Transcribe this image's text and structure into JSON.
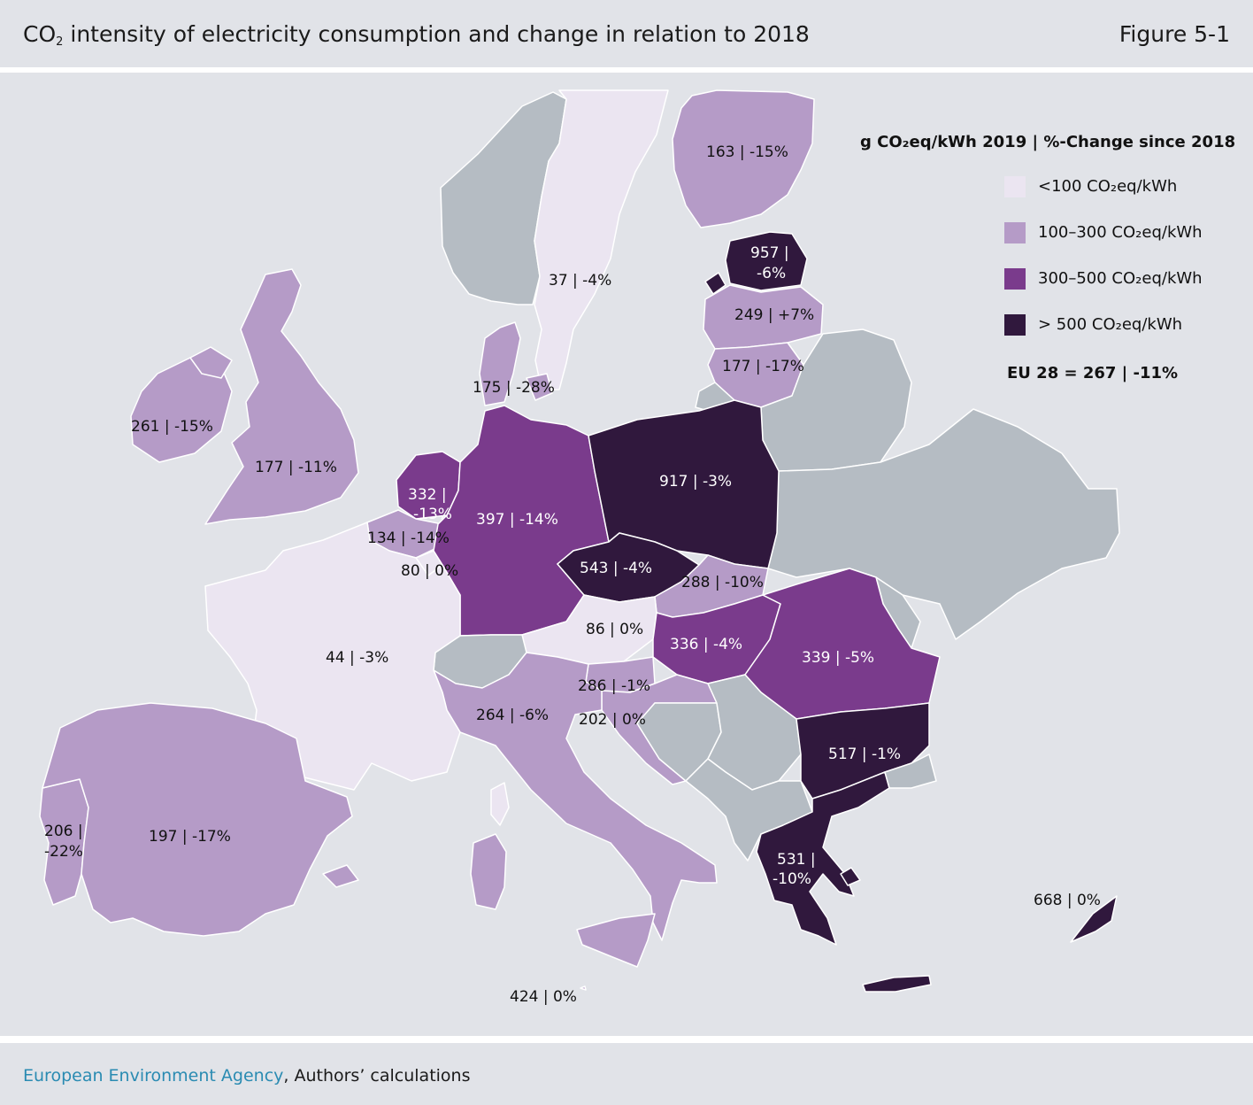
{
  "header": {
    "title_prefix": "CO",
    "title_sub": "2",
    "title_rest": " intensity of electricity consumption and change in relation to 2018",
    "figure_label": "Figure 5-1"
  },
  "legend": {
    "title": "g CO₂eq/kWh 2019 | %-Change since 2018",
    "items": [
      {
        "label": "<100 CO₂eq/kWh",
        "color": "#ebe5f1"
      },
      {
        "label": "100–300 CO₂eq/kWh",
        "color": "#b59bc7"
      },
      {
        "label": "300–500 CO₂eq/kWh",
        "color": "#7a3b8c"
      },
      {
        "label": "> 500 CO₂eq/kWh",
        "color": "#30183d"
      }
    ],
    "eu_total": "EU 28 = 267 | -11%"
  },
  "colors": {
    "lt100": "#ebe5f1",
    "r100_300": "#b59bc7",
    "r300_500": "#7a3b8c",
    "gt500": "#30183d",
    "no_data": "#b5bcc3",
    "background": "#e1e3e8",
    "source_link": "#2a8bb2"
  },
  "countries": [
    {
      "id": "finland",
      "value": 163,
      "change": "-15%",
      "label": "163 | -15%"
    },
    {
      "id": "sweden",
      "value": 37,
      "change": "-4%",
      "label": "37 | -4%"
    },
    {
      "id": "estonia",
      "value": 957,
      "change": "-6%",
      "label_line1": "957 |",
      "label_line2": "-6%"
    },
    {
      "id": "latvia",
      "value": 249,
      "change": "+7%",
      "label": "249 | +7%"
    },
    {
      "id": "lithuania",
      "value": 177,
      "change": "-17%",
      "label": "177 | -17%"
    },
    {
      "id": "denmark",
      "value": 175,
      "change": "-28%",
      "label": "175 | -28%"
    },
    {
      "id": "ireland",
      "value": 261,
      "change": "-15%",
      "label": "261 | -15%"
    },
    {
      "id": "united-kingdom",
      "value": 177,
      "change": "-11%",
      "label": "177 | -11%"
    },
    {
      "id": "netherlands",
      "value": 332,
      "change": "-13%",
      "label_line1": "332 |",
      "label_line2": "-13%"
    },
    {
      "id": "belgium",
      "value": 134,
      "change": "-14%",
      "label": "134 | -14%"
    },
    {
      "id": "luxembourg",
      "value": 80,
      "change": "0%",
      "label": "80 | 0%"
    },
    {
      "id": "germany",
      "value": 397,
      "change": "-14%",
      "label": "397 | -14%"
    },
    {
      "id": "poland",
      "value": 917,
      "change": "-3%",
      "label": "917 | -3%"
    },
    {
      "id": "czechia",
      "value": 543,
      "change": "-4%",
      "label": "543 | -4%"
    },
    {
      "id": "slovakia",
      "value": 288,
      "change": "-10%",
      "label": "288 | -10%"
    },
    {
      "id": "austria",
      "value": 86,
      "change": "0%",
      "label": "86 | 0%"
    },
    {
      "id": "hungary",
      "value": 336,
      "change": "-4%",
      "label": "336 | -4%"
    },
    {
      "id": "romania",
      "value": 339,
      "change": "-5%",
      "label": "339 | -5%"
    },
    {
      "id": "france",
      "value": 44,
      "change": "-3%",
      "label": "44 | -3%"
    },
    {
      "id": "slovenia",
      "value": 286,
      "change": "-1%",
      "label": "286 | -1%"
    },
    {
      "id": "croatia",
      "value": 202,
      "change": "0%",
      "label": "202 | 0%"
    },
    {
      "id": "italy",
      "value": 264,
      "change": "-6%",
      "label": "264 | -6%"
    },
    {
      "id": "bulgaria",
      "value": 517,
      "change": "-1%",
      "label": "517 | -1%"
    },
    {
      "id": "portugal",
      "value": 206,
      "change": "-22%",
      "label_line1": "206 |",
      "label_line2": "-22%"
    },
    {
      "id": "spain",
      "value": 197,
      "change": "-17%",
      "label": "197 | -17%"
    },
    {
      "id": "greece",
      "value": 531,
      "change": "-10%",
      "label_line1": "531 |",
      "label_line2": "-10%"
    },
    {
      "id": "cyprus",
      "value": 668,
      "change": "0%",
      "label": "668 | 0%"
    },
    {
      "id": "malta",
      "value": 424,
      "change": "0%",
      "label": "424 | 0%"
    }
  ],
  "footer": {
    "source_agency": "European Environment Agency",
    "source_rest": ", Authors’ calculations"
  }
}
